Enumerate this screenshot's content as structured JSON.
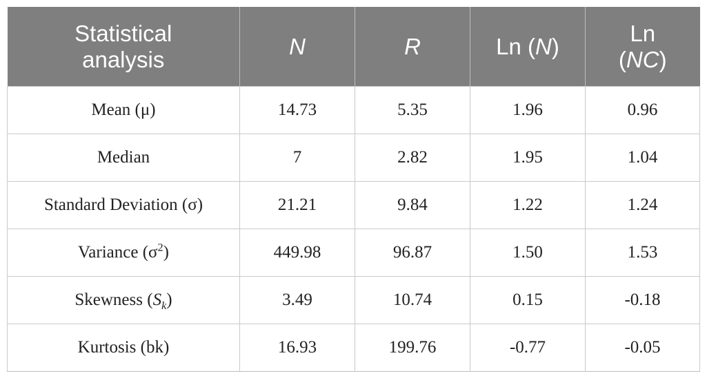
{
  "table": {
    "header": {
      "col0_line1": "Statistical",
      "col0_line2": "analysis",
      "col1": "N",
      "col2": "R",
      "col3_pre": "Ln (",
      "col3_var": "N",
      "col3_post": ")",
      "col4_line1": "Ln",
      "col4_pre": "(",
      "col4_var": "NC",
      "col4_post": ")"
    },
    "rows": [
      {
        "label": "Mean (μ)",
        "n": "14.73",
        "r": "5.35",
        "ln_n": "1.96",
        "ln_nc": "0.96"
      },
      {
        "label": "Median",
        "n": "7",
        "r": "2.82",
        "ln_n": "1.95",
        "ln_nc": "1.04"
      },
      {
        "label": "Standard Deviation (σ)",
        "n": "21.21",
        "r": "9.84",
        "ln_n": "1.22",
        "ln_nc": "1.24"
      },
      {
        "label_pre": "Variance (σ",
        "label_sup": "2",
        "label_post": ")",
        "n": "449.98",
        "r": "96.87",
        "ln_n": "1.50",
        "ln_nc": "1.53"
      },
      {
        "label_pre": "Skewness (",
        "label_var": "S",
        "label_sub": "k",
        "label_post": ")",
        "n": "3.49",
        "r": "10.74",
        "ln_n": "0.15",
        "ln_nc": "-0.18"
      },
      {
        "label": "Kurtosis (bk)",
        "n": "16.93",
        "r": "199.76",
        "ln_n": "-0.77",
        "ln_nc": "-0.05"
      }
    ]
  }
}
